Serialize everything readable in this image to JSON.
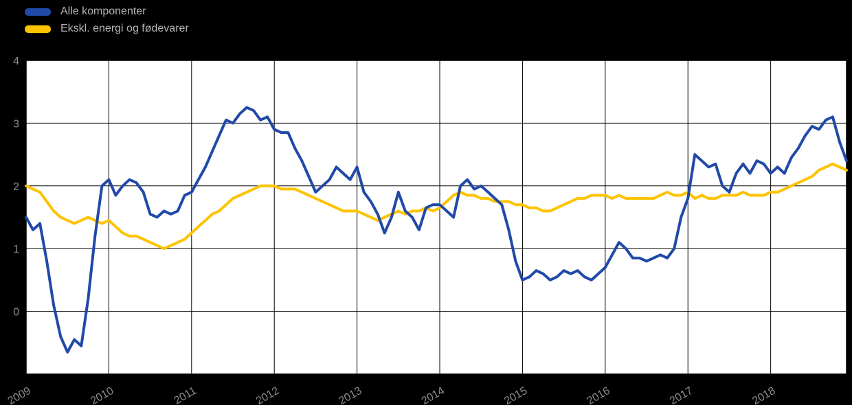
{
  "chart_data": {
    "type": "line",
    "title": "",
    "xlabel": "",
    "ylabel": "",
    "x_tick_labels": [
      "2009",
      "2010",
      "2011",
      "2012",
      "2013",
      "2014",
      "2015",
      "2016",
      "2017",
      "2018"
    ],
    "y_ticks": [
      0,
      1,
      2,
      3,
      4
    ],
    "ylim": [
      -1,
      4
    ],
    "grid": true,
    "legend_position": "top-left",
    "background": "#000000",
    "plot_background": "#ffffff",
    "grid_color": "#000000",
    "tick_color": "#8c8c8c",
    "legend_text_color": "#b5b5b5",
    "series": [
      {
        "name": "Alle komponenter",
        "color": "#2149a8",
        "values": [
          1.5,
          1.3,
          1.4,
          0.8,
          0.1,
          -0.4,
          -0.65,
          -0.45,
          -0.55,
          0.2,
          1.2,
          2.0,
          2.1,
          1.85,
          2.0,
          2.1,
          2.05,
          1.9,
          1.55,
          1.5,
          1.6,
          1.55,
          1.6,
          1.85,
          1.9,
          2.1,
          2.3,
          2.55,
          2.8,
          3.05,
          3.0,
          3.15,
          3.25,
          3.2,
          3.05,
          3.1,
          2.9,
          2.85,
          2.85,
          2.6,
          2.4,
          2.15,
          1.9,
          2.0,
          2.1,
          2.3,
          2.2,
          2.1,
          2.3,
          1.9,
          1.75,
          1.55,
          1.25,
          1.5,
          1.9,
          1.6,
          1.5,
          1.3,
          1.65,
          1.7,
          1.7,
          1.6,
          1.5,
          2.0,
          2.1,
          1.95,
          2.0,
          1.9,
          1.8,
          1.7,
          1.3,
          0.8,
          0.5,
          0.55,
          0.65,
          0.6,
          0.5,
          0.55,
          0.65,
          0.6,
          0.65,
          0.55,
          0.5,
          0.6,
          0.7,
          0.9,
          1.1,
          1.0,
          0.85,
          0.85,
          0.8,
          0.85,
          0.9,
          0.85,
          1.0,
          1.5,
          1.8,
          2.5,
          2.4,
          2.3,
          2.35,
          2.0,
          1.9,
          2.2,
          2.35,
          2.2,
          2.4,
          2.35,
          2.2,
          2.3,
          2.2,
          2.45,
          2.6,
          2.8,
          2.95,
          2.9,
          3.05,
          3.1,
          2.7,
          2.4
        ]
      },
      {
        "name": "Ekskl. energi og fødevarer",
        "color": "#fdc300",
        "values": [
          2.0,
          1.95,
          1.9,
          1.75,
          1.6,
          1.5,
          1.45,
          1.4,
          1.45,
          1.5,
          1.45,
          1.4,
          1.45,
          1.35,
          1.25,
          1.2,
          1.2,
          1.15,
          1.1,
          1.05,
          1.0,
          1.05,
          1.1,
          1.15,
          1.25,
          1.35,
          1.45,
          1.55,
          1.6,
          1.7,
          1.8,
          1.85,
          1.9,
          1.95,
          2.0,
          2.0,
          2.0,
          1.95,
          1.95,
          1.95,
          1.9,
          1.85,
          1.8,
          1.75,
          1.7,
          1.65,
          1.6,
          1.6,
          1.6,
          1.55,
          1.5,
          1.45,
          1.5,
          1.55,
          1.6,
          1.55,
          1.6,
          1.6,
          1.65,
          1.6,
          1.65,
          1.75,
          1.85,
          1.9,
          1.85,
          1.85,
          1.8,
          1.8,
          1.75,
          1.75,
          1.75,
          1.7,
          1.7,
          1.65,
          1.65,
          1.6,
          1.6,
          1.65,
          1.7,
          1.75,
          1.8,
          1.8,
          1.85,
          1.85,
          1.85,
          1.8,
          1.85,
          1.8,
          1.8,
          1.8,
          1.8,
          1.8,
          1.85,
          1.9,
          1.85,
          1.85,
          1.9,
          1.8,
          1.85,
          1.8,
          1.8,
          1.85,
          1.85,
          1.85,
          1.9,
          1.85,
          1.85,
          1.85,
          1.9,
          1.9,
          1.95,
          2.0,
          2.05,
          2.1,
          2.15,
          2.25,
          2.3,
          2.35,
          2.3,
          2.25
        ]
      }
    ]
  }
}
